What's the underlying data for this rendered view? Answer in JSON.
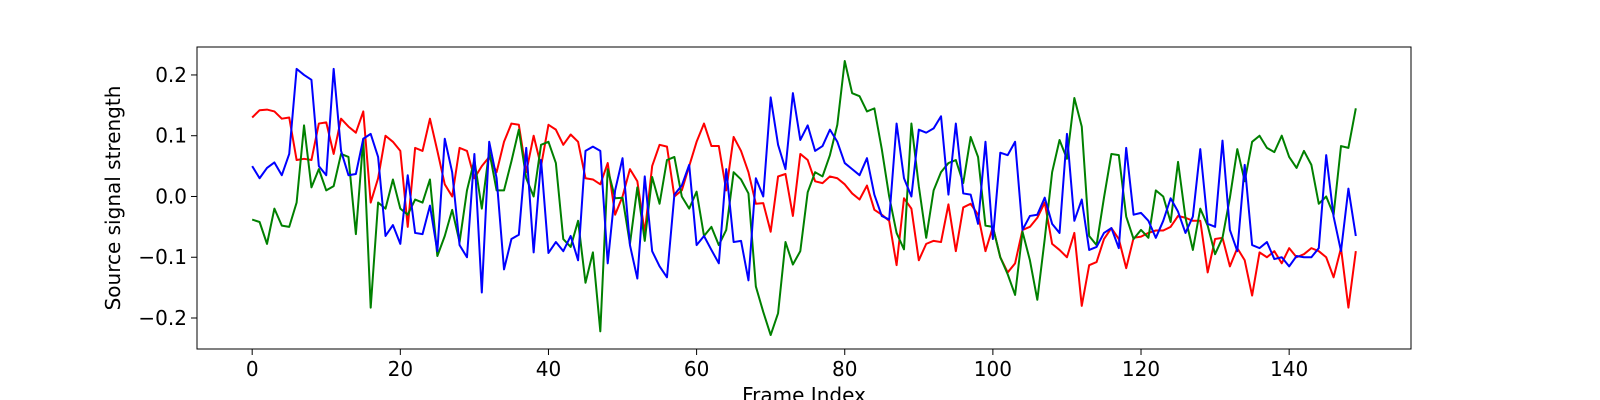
{
  "chart_data": {
    "type": "line",
    "xlabel": "Frame Index",
    "ylabel": "Source signal strength",
    "x": [
      0,
      1,
      2,
      3,
      4,
      5,
      6,
      7,
      8,
      9,
      10,
      11,
      12,
      13,
      14,
      15,
      16,
      17,
      18,
      19,
      20,
      21,
      22,
      23,
      24,
      25,
      26,
      27,
      28,
      29,
      30,
      31,
      32,
      33,
      34,
      35,
      36,
      37,
      38,
      39,
      40,
      41,
      42,
      43,
      44,
      45,
      46,
      47,
      48,
      49,
      50,
      51,
      52,
      53,
      54,
      55,
      56,
      57,
      58,
      59,
      60,
      61,
      62,
      63,
      64,
      65,
      66,
      67,
      68,
      69,
      70,
      71,
      72,
      73,
      74,
      75,
      76,
      77,
      78,
      79,
      80,
      81,
      82,
      83,
      84,
      85,
      86,
      87,
      88,
      89,
      90,
      91,
      92,
      93,
      94,
      95,
      96,
      97,
      98,
      99,
      100,
      101,
      102,
      103,
      104,
      105,
      106,
      107,
      108,
      109,
      110,
      111,
      112,
      113,
      114,
      115,
      116,
      117,
      118,
      119,
      120,
      121,
      122,
      123,
      124,
      125,
      126,
      127,
      128,
      129,
      130,
      131,
      132,
      133,
      134,
      135,
      136,
      137,
      138,
      139,
      140,
      141,
      142,
      143,
      144,
      145,
      146,
      147,
      148,
      149
    ],
    "series": [
      {
        "color": "#ff0000",
        "values": [
          0.13,
          0.142,
          0.143,
          0.14,
          0.128,
          0.13,
          0.06,
          0.062,
          0.06,
          0.12,
          0.122,
          0.07,
          0.128,
          0.115,
          0.105,
          0.14,
          -0.01,
          0.03,
          0.1,
          0.09,
          0.075,
          -0.05,
          0.08,
          0.075,
          0.128,
          0.075,
          0.02,
          0.0,
          0.08,
          0.075,
          0.03,
          0.05,
          0.065,
          0.04,
          0.09,
          0.12,
          0.118,
          0.04,
          0.1,
          0.05,
          0.118,
          0.11,
          0.085,
          0.102,
          0.09,
          0.03,
          0.028,
          0.02,
          0.055,
          -0.03,
          0.0,
          0.045,
          0.025,
          -0.06,
          0.05,
          0.085,
          0.082,
          0.0,
          0.01,
          0.05,
          0.09,
          0.12,
          0.083,
          0.083,
          0.01,
          0.098,
          0.075,
          0.04,
          -0.012,
          -0.011,
          -0.058,
          0.033,
          0.037,
          -0.032,
          0.07,
          0.06,
          0.025,
          0.022,
          0.033,
          0.03,
          0.02,
          0.005,
          -0.005,
          0.018,
          -0.022,
          -0.03,
          -0.04,
          -0.113,
          -0.003,
          -0.02,
          -0.105,
          -0.078,
          -0.073,
          -0.075,
          -0.013,
          -0.09,
          -0.018,
          -0.012,
          -0.03,
          -0.09,
          -0.05,
          -0.1,
          -0.125,
          -0.11,
          -0.055,
          -0.05,
          -0.035,
          -0.01,
          -0.078,
          -0.088,
          -0.1,
          -0.06,
          -0.18,
          -0.113,
          -0.108,
          -0.07,
          -0.052,
          -0.07,
          -0.118,
          -0.068,
          -0.066,
          -0.06,
          -0.056,
          -0.056,
          -0.05,
          -0.032,
          -0.035,
          -0.04,
          -0.04,
          -0.125,
          -0.07,
          -0.068,
          -0.115,
          -0.085,
          -0.105,
          -0.163,
          -0.092,
          -0.1,
          -0.09,
          -0.11,
          -0.085,
          -0.1,
          -0.095,
          -0.085,
          -0.09,
          -0.1,
          -0.133,
          -0.085,
          -0.183,
          -0.09
        ]
      },
      {
        "color": "#008000",
        "values": [
          -0.038,
          -0.042,
          -0.078,
          -0.02,
          -0.048,
          -0.05,
          -0.01,
          0.117,
          0.015,
          0.045,
          0.01,
          0.017,
          0.07,
          0.065,
          -0.062,
          0.095,
          -0.183,
          -0.01,
          -0.02,
          0.028,
          -0.02,
          -0.03,
          -0.005,
          -0.01,
          0.028,
          -0.098,
          -0.065,
          -0.022,
          -0.075,
          0.01,
          0.06,
          -0.02,
          0.075,
          0.01,
          0.01,
          0.058,
          0.11,
          0.03,
          0.0,
          0.085,
          0.09,
          0.055,
          -0.07,
          -0.083,
          -0.04,
          -0.142,
          -0.092,
          -0.222,
          0.045,
          -0.003,
          -0.002,
          -0.078,
          0.015,
          -0.073,
          0.032,
          -0.012,
          0.06,
          0.065,
          0.0,
          -0.02,
          0.008,
          -0.065,
          -0.05,
          -0.08,
          -0.055,
          0.04,
          0.028,
          0.005,
          -0.148,
          -0.19,
          -0.228,
          -0.192,
          -0.075,
          -0.112,
          -0.09,
          0.007,
          0.04,
          0.033,
          0.068,
          0.118,
          0.223,
          0.17,
          0.165,
          0.14,
          0.145,
          0.078,
          0.0,
          -0.06,
          -0.087,
          0.12,
          0.017,
          -0.068,
          0.01,
          0.04,
          0.055,
          0.06,
          0.022,
          0.098,
          0.065,
          -0.048,
          -0.05,
          -0.1,
          -0.128,
          -0.162,
          -0.058,
          -0.105,
          -0.17,
          -0.07,
          0.04,
          0.093,
          0.062,
          0.162,
          0.115,
          -0.065,
          -0.08,
          -0.002,
          0.07,
          0.068,
          -0.033,
          -0.07,
          -0.055,
          -0.068,
          0.01,
          0.0,
          -0.042,
          0.057,
          -0.035,
          -0.088,
          -0.02,
          -0.048,
          -0.095,
          -0.068,
          -0.002,
          0.078,
          0.025,
          0.09,
          0.1,
          0.08,
          0.073,
          0.1,
          0.065,
          0.047,
          0.075,
          0.052,
          -0.012,
          0.0,
          -0.03,
          0.083,
          0.08,
          0.145
        ]
      },
      {
        "color": "#0000ff",
        "values": [
          0.05,
          0.03,
          0.047,
          0.056,
          0.035,
          0.07,
          0.21,
          0.2,
          0.192,
          0.05,
          0.035,
          0.21,
          0.075,
          0.035,
          0.037,
          0.095,
          0.103,
          0.065,
          -0.065,
          -0.047,
          -0.078,
          0.035,
          -0.06,
          -0.062,
          -0.015,
          -0.09,
          0.095,
          0.04,
          -0.08,
          -0.1,
          0.07,
          -0.158,
          0.09,
          0.03,
          -0.12,
          -0.07,
          -0.063,
          0.08,
          -0.092,
          0.06,
          -0.093,
          -0.075,
          -0.09,
          -0.065,
          -0.105,
          0.075,
          0.082,
          0.075,
          -0.11,
          0.01,
          0.063,
          -0.08,
          -0.135,
          0.033,
          -0.09,
          -0.115,
          -0.133,
          0.003,
          0.018,
          0.052,
          -0.08,
          -0.065,
          -0.088,
          -0.11,
          0.045,
          -0.075,
          -0.073,
          -0.138,
          0.03,
          0.0,
          0.163,
          0.085,
          0.045,
          0.17,
          0.093,
          0.117,
          0.075,
          0.083,
          0.11,
          0.09,
          0.055,
          0.045,
          0.035,
          0.063,
          0.003,
          -0.032,
          -0.038,
          0.12,
          0.03,
          0.0,
          0.11,
          0.105,
          0.112,
          0.132,
          0.003,
          0.12,
          0.005,
          0.003,
          -0.045,
          0.09,
          -0.07,
          0.072,
          0.068,
          0.09,
          -0.055,
          -0.032,
          -0.03,
          -0.002,
          -0.045,
          -0.06,
          0.103,
          -0.04,
          -0.005,
          -0.088,
          -0.083,
          -0.06,
          -0.052,
          -0.085,
          0.08,
          -0.03,
          -0.027,
          -0.04,
          -0.068,
          -0.04,
          -0.003,
          -0.025,
          -0.06,
          -0.033,
          0.078,
          -0.045,
          -0.05,
          0.092,
          -0.055,
          -0.09,
          0.052,
          -0.08,
          -0.085,
          -0.075,
          -0.103,
          -0.1,
          -0.115,
          -0.098,
          -0.1,
          -0.1,
          -0.085,
          0.068,
          -0.033,
          -0.09,
          0.013,
          -0.065
        ]
      }
    ],
    "xlim": [
      -7.45,
      156.45
    ],
    "xticks": [
      0,
      20,
      40,
      60,
      80,
      100,
      120,
      140
    ],
    "ylim": [
      -0.251,
      0.246
    ],
    "yticks": [
      {
        "value": -0.2,
        "label": "−0.2"
      },
      {
        "value": -0.1,
        "label": "−0.1"
      },
      {
        "value": 0,
        "label": "0.0"
      },
      0.1,
      0.2
    ]
  }
}
